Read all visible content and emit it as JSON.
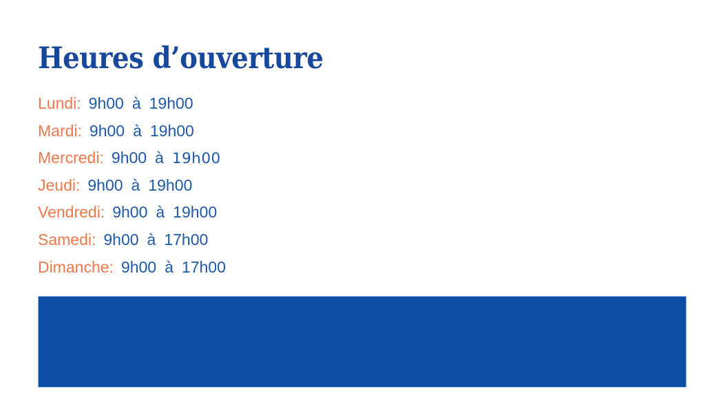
{
  "page": {
    "title": "Heures d’ouverture"
  },
  "colors": {
    "title": "#17489B",
    "day": "#F0774A",
    "time": "#1E58A9",
    "banner": "#0B4DA2",
    "banner_border": "#9BB4DC"
  },
  "hours": {
    "items": [
      {
        "day": "Lundi:",
        "open": "9h00",
        "conj": "à",
        "close": "19h00",
        "alt_close": false
      },
      {
        "day": "Mardi:",
        "open": "9h00",
        "conj": "à",
        "close": "19h00",
        "alt_close": false
      },
      {
        "day": "Mercredi:",
        "open": "9h00",
        "conj": "à",
        "close": "19h00",
        "alt_close": true
      },
      {
        "day": "Jeudi:",
        "open": "9h00",
        "conj": "à",
        "close": "19h00",
        "alt_close": false
      },
      {
        "day": "Vendredi:",
        "open": "9h00",
        "conj": "à",
        "close": "19h00",
        "alt_close": false
      },
      {
        "day": "Samedi:",
        "open": "9h00",
        "conj": "à",
        "close": "17h00",
        "alt_close": false
      },
      {
        "day": "Dimanche:",
        "open": "9h00",
        "conj": "à",
        "close": "17h00",
        "alt_close": false
      }
    ]
  }
}
